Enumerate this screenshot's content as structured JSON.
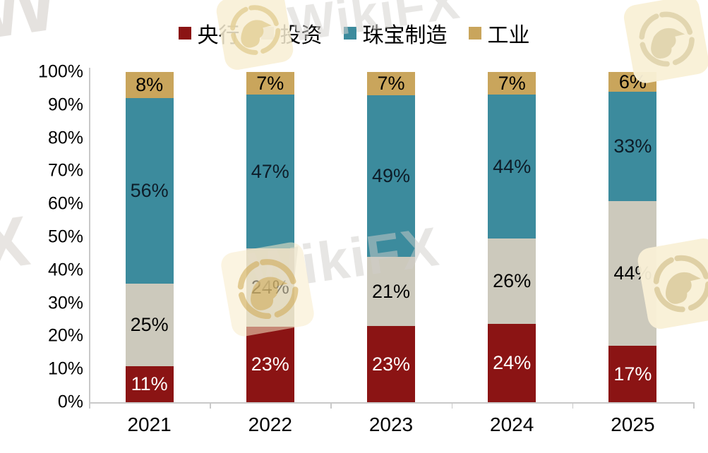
{
  "watermark": {
    "brand": "WikiFX",
    "fragment_w": "W",
    "fragment_x": "X"
  },
  "chart_data": {
    "type": "bar",
    "stacked": true,
    "percent": true,
    "title": "",
    "xlabel": "",
    "ylabel": "",
    "categories": [
      "2021",
      "2022",
      "2023",
      "2024",
      "2025"
    ],
    "series": [
      {
        "name": "央行",
        "color": "#8B1414",
        "label_color": "#ffffff",
        "values": [
          11,
          23,
          23,
          24,
          17
        ]
      },
      {
        "name": "投资",
        "color": "#CCC9BC",
        "label_color": "#000000",
        "values": [
          25,
          24,
          21,
          26,
          44
        ]
      },
      {
        "name": "珠宝制造",
        "color": "#3C8B9D",
        "label_color": "#0d1c28",
        "values": [
          56,
          47,
          49,
          44,
          33
        ]
      },
      {
        "name": "工业",
        "color": "#C9A55C",
        "label_color": "#000000",
        "values": [
          8,
          7,
          7,
          7,
          6
        ]
      }
    ],
    "value_suffix": "%",
    "yticks": [
      "100%",
      "90%",
      "80%",
      "70%",
      "60%",
      "50%",
      "40%",
      "30%",
      "20%",
      "10%",
      "0%"
    ],
    "ylim": [
      0,
      100
    ],
    "grid": false,
    "legend_position": "top"
  }
}
